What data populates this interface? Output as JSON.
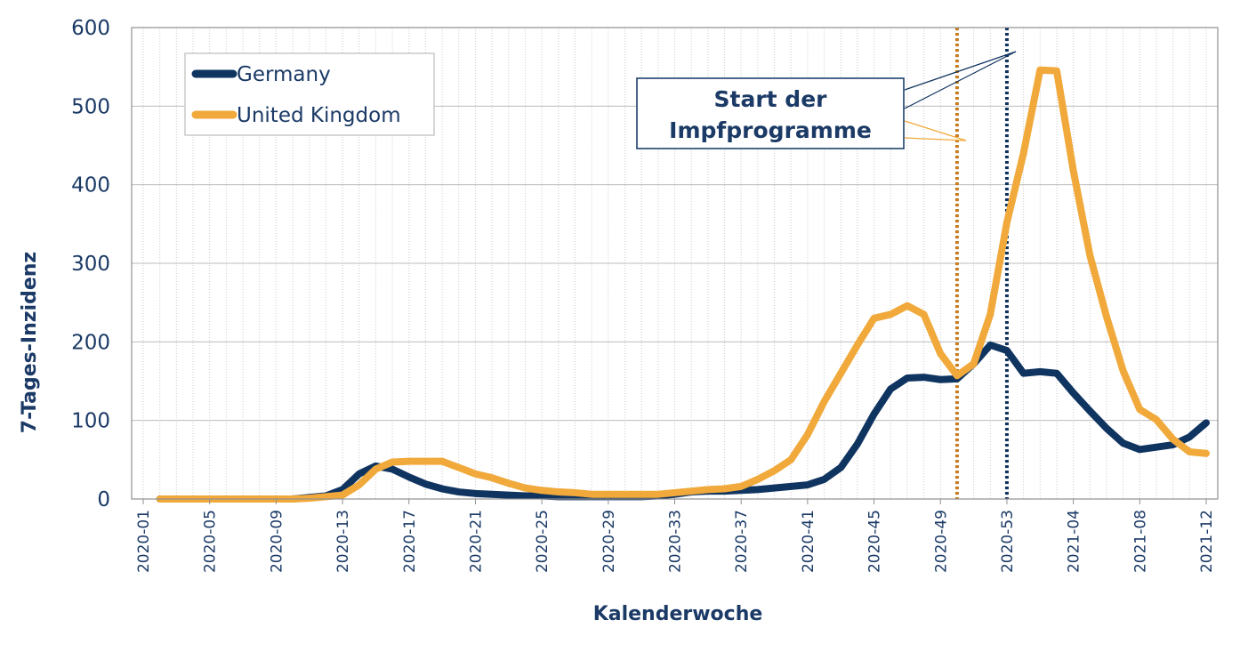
{
  "chart_data": {
    "type": "line",
    "xlabel": "Kalenderwoche",
    "ylabel": "7-Tages-Inzidenz",
    "ylim": [
      0,
      600
    ],
    "yticks": [
      0,
      100,
      200,
      300,
      400,
      500,
      600
    ],
    "grid": true,
    "legend": "top-left",
    "weeks": [
      "2020-01",
      "2020-02",
      "2020-03",
      "2020-04",
      "2020-05",
      "2020-06",
      "2020-07",
      "2020-08",
      "2020-09",
      "2020-10",
      "2020-11",
      "2020-12",
      "2020-13",
      "2020-14",
      "2020-15",
      "2020-16",
      "2020-17",
      "2020-18",
      "2020-19",
      "2020-20",
      "2020-21",
      "2020-22",
      "2020-23",
      "2020-24",
      "2020-25",
      "2020-26",
      "2020-27",
      "2020-28",
      "2020-29",
      "2020-30",
      "2020-31",
      "2020-32",
      "2020-33",
      "2020-34",
      "2020-35",
      "2020-36",
      "2020-37",
      "2020-38",
      "2020-39",
      "2020-40",
      "2020-41",
      "2020-42",
      "2020-43",
      "2020-44",
      "2020-45",
      "2020-46",
      "2020-47",
      "2020-48",
      "2020-49",
      "2020-50",
      "2020-51",
      "2020-52",
      "2020-53",
      "2021-01",
      "2021-02",
      "2021-03",
      "2021-04",
      "2021-05",
      "2021-06",
      "2021-07",
      "2021-08",
      "2021-09",
      "2021-10",
      "2021-11",
      "2021-12"
    ],
    "tick_labels": [
      "2020-01",
      "2020-05",
      "2020-09",
      "2020-13",
      "2020-17",
      "2020-21",
      "2020-25",
      "2020-29",
      "2020-33",
      "2020-37",
      "2020-41",
      "2020-45",
      "2020-49",
      "2020-53",
      "2021-04",
      "2021-08",
      "2021-12"
    ],
    "series": [
      {
        "name": "Germany",
        "color": "#0f3460",
        "values": [
          null,
          0,
          0,
          0,
          0,
          0,
          0,
          0,
          0,
          0,
          2,
          4,
          12,
          32,
          42,
          38,
          28,
          19,
          13,
          9,
          7,
          6,
          5,
          4,
          4,
          3,
          3,
          3,
          3,
          3,
          3,
          4,
          6,
          9,
          10,
          10,
          11,
          12,
          14,
          16,
          18,
          25,
          40,
          70,
          108,
          140,
          154,
          155,
          152,
          153,
          172,
          196,
          189,
          160,
          162,
          160,
          135,
          112,
          90,
          71,
          63,
          66,
          69,
          79,
          97
        ]
      },
      {
        "name": "United Kingdom",
        "color": "#f0a93a",
        "values": [
          null,
          0,
          0,
          0,
          0,
          0,
          0,
          0,
          0,
          0,
          1,
          3,
          5,
          18,
          38,
          47,
          48,
          48,
          48,
          40,
          32,
          27,
          20,
          14,
          11,
          9,
          8,
          6,
          6,
          6,
          6,
          6,
          8,
          10,
          12,
          13,
          16,
          25,
          36,
          50,
          82,
          124,
          160,
          196,
          230,
          235,
          246,
          235,
          185,
          157,
          172,
          235,
          352,
          440,
          546,
          545,
          418,
          310,
          232,
          163,
          114,
          101,
          76,
          60,
          58
        ]
      }
    ],
    "annotations": [
      {
        "text_line1": "Start der",
        "text_line2": "Impfprogramme",
        "markers": [
          {
            "week": "2020-50",
            "color": "#c77d1e"
          },
          {
            "week": "2020-53",
            "color": "#0f3460"
          }
        ]
      }
    ]
  },
  "legend": {
    "germany_label": "Germany",
    "uk_label": "United Kingdom"
  },
  "annotation": {
    "line1": "Start der",
    "line2": "Impfprogramme"
  },
  "axes": {
    "xlabel": "Kalenderwoche",
    "ylabel": "7-Tages-Inzidenz"
  }
}
